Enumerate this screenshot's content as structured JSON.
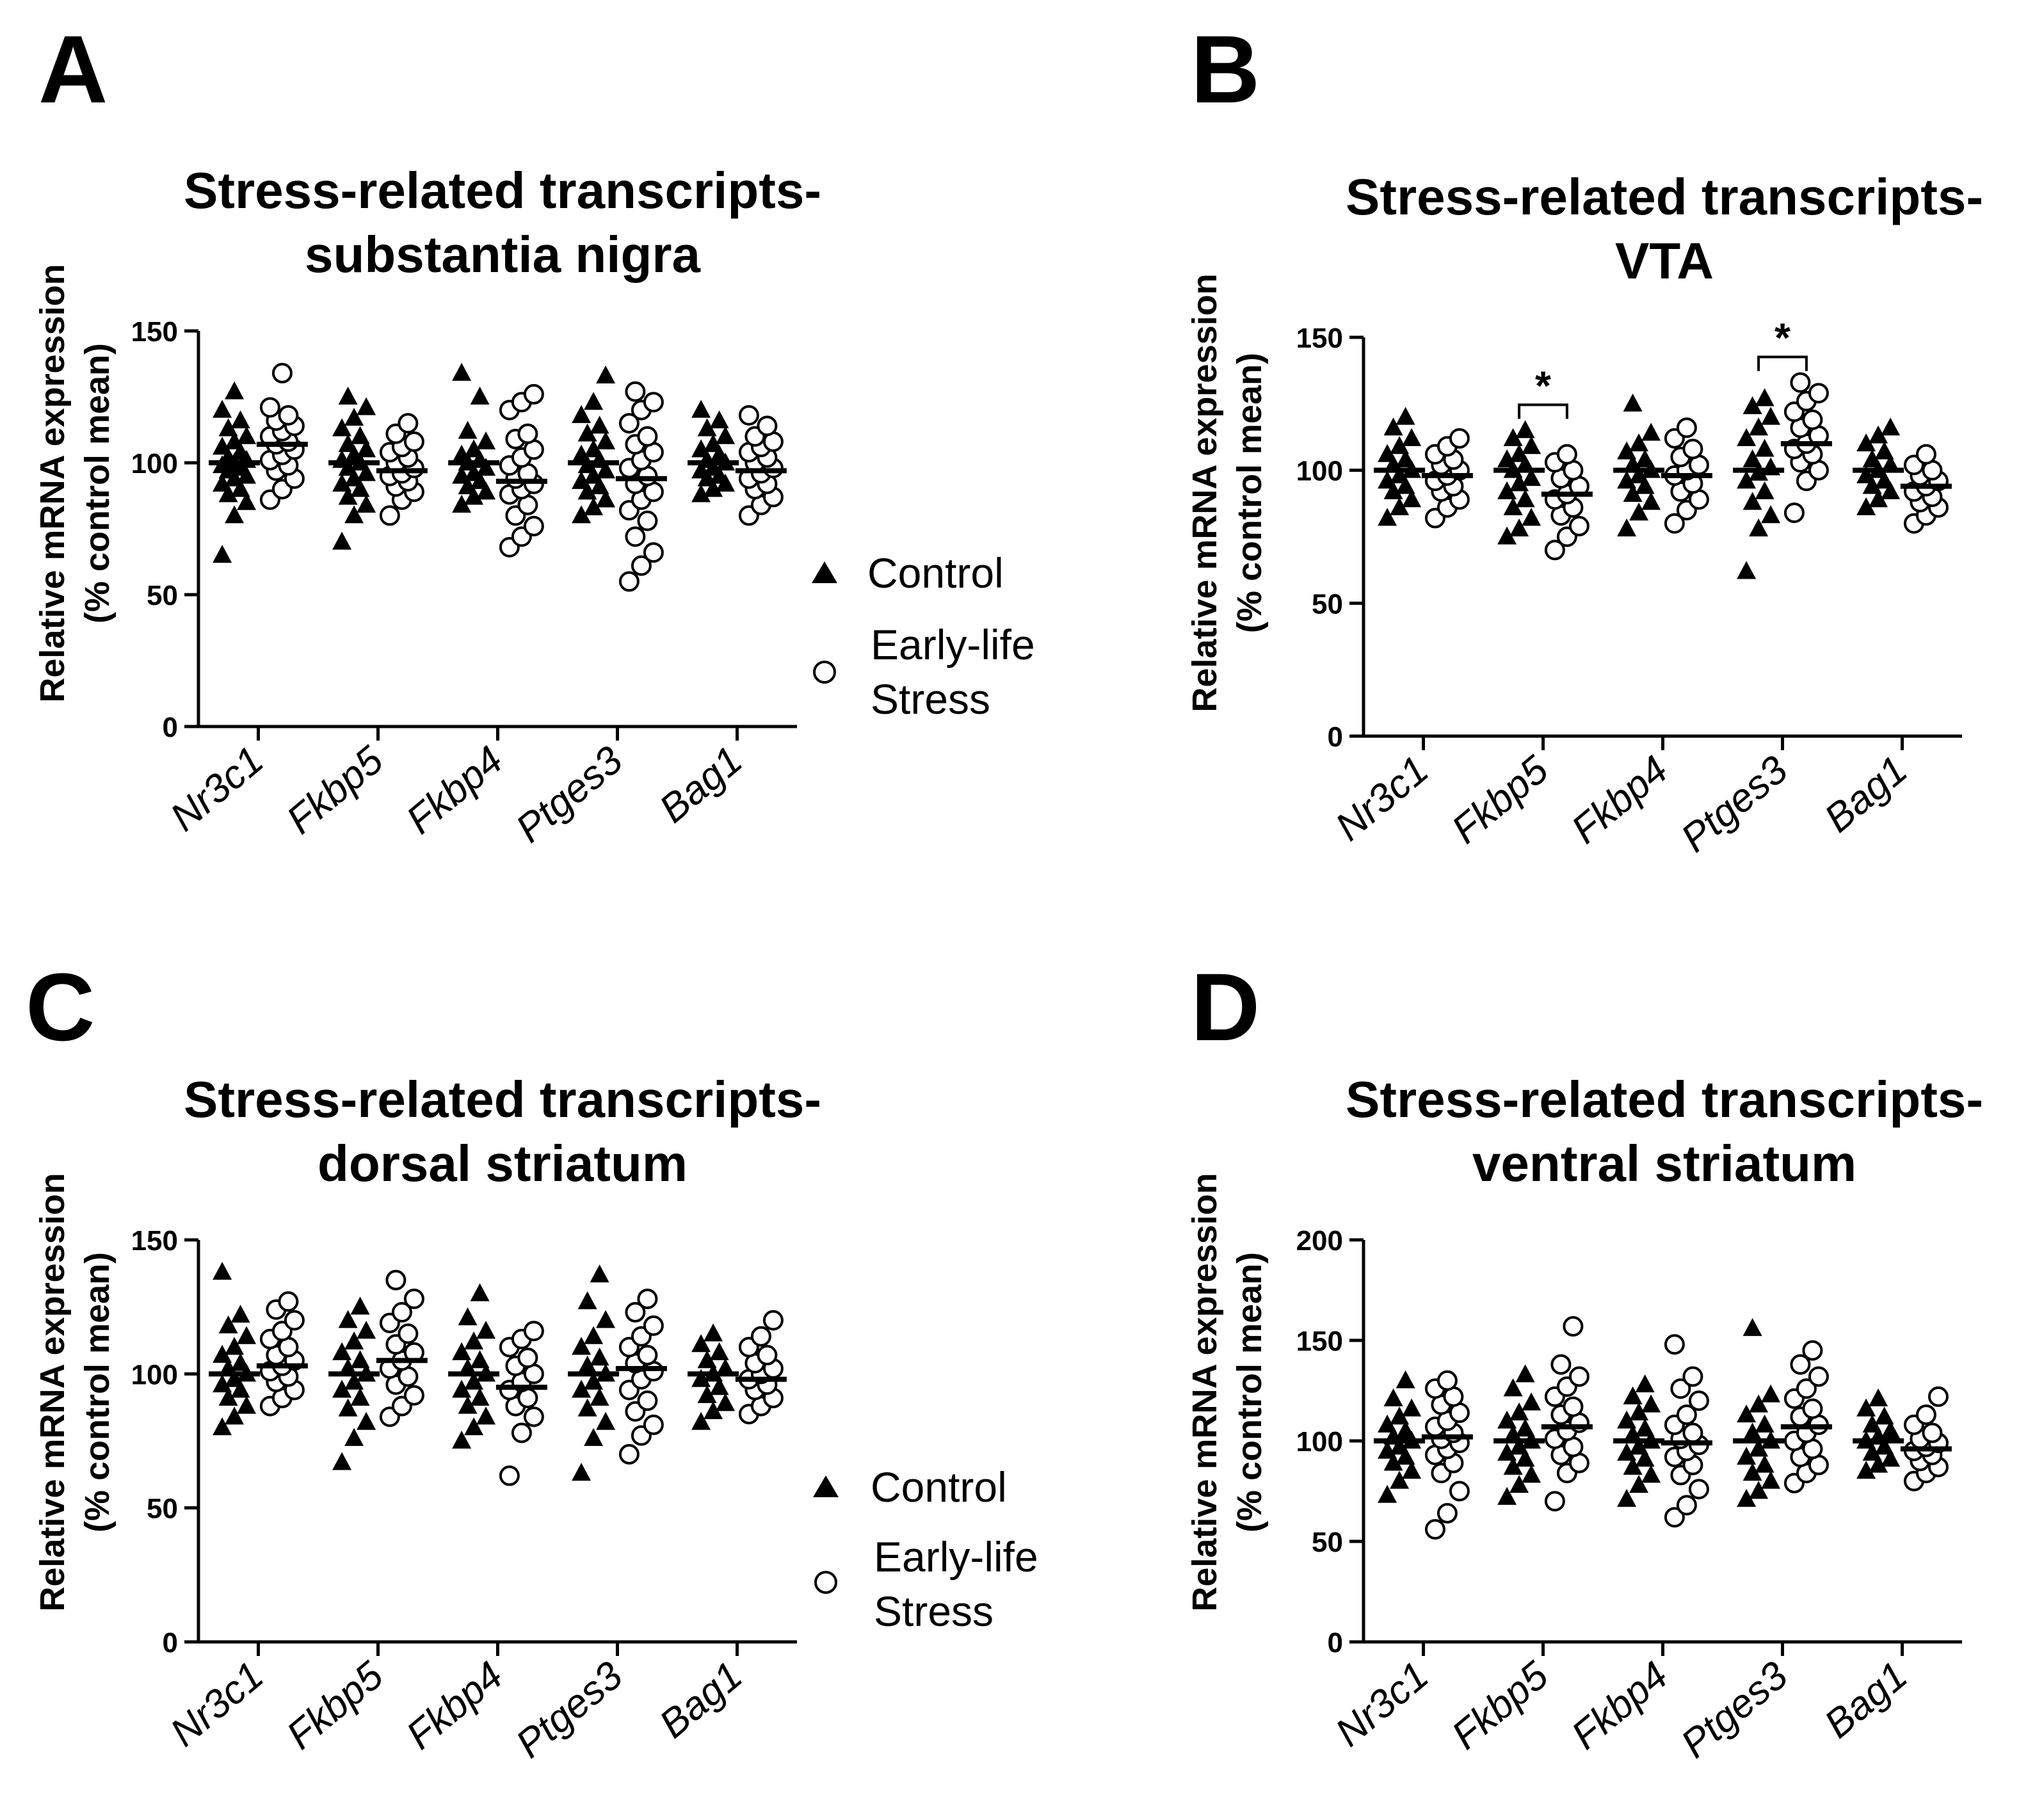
{
  "figure": {
    "x_categories": [
      "Nr3c1",
      "Fkbp5",
      "Fkbp4",
      "Ptges3",
      "Bag1"
    ],
    "ylabel_line1": "Relative mRNA expression",
    "ylabel_line2": "(% control mean)",
    "series_colors": {
      "Control": "#000000",
      "Early-life Stress": "#ffffff"
    }
  },
  "chart_data": [
    {
      "panel": "A",
      "type": "scatter",
      "title_line1": "Stress-related transcripts-",
      "title_line2": "substantia nigra",
      "ylim": [
        0,
        150
      ],
      "yticks": [
        0,
        50,
        100,
        150
      ],
      "legend": {
        "control": "Control",
        "els_line1": "Early-life",
        "els_line2": "Stress",
        "position": "right"
      },
      "significance": [],
      "series": [
        {
          "name": "Control",
          "marker": "triangle-filled",
          "means": [
            100,
            100,
            100,
            100,
            100
          ],
          "points": [
            [
              65,
              80,
              85,
              88,
              90,
              92,
              94,
              95,
              97,
              98,
              99,
              100,
              101,
              102,
              104,
              106,
              108,
              110,
              113,
              116,
              120,
              127
            ],
            [
              70,
              80,
              84,
              87,
              90,
              92,
              94,
              96,
              98,
              100,
              101,
              103,
              105,
              107,
              110,
              113,
              117,
              121,
              125
            ],
            [
              84,
              87,
              89,
              91,
              93,
              95,
              96,
              98,
              100,
              101,
              103,
              105,
              108,
              112,
              125,
              134
            ],
            [
              80,
              83,
              86,
              89,
              91,
              93,
              95,
              97,
              99,
              101,
              103,
              105,
              108,
              111,
              114,
              118,
              123,
              133
            ],
            [
              88,
              90,
              92,
              94,
              95,
              97,
              98,
              100,
              101,
              103,
              105,
              107,
              110,
              113,
              116,
              120
            ]
          ]
        },
        {
          "name": "Early-life Stress",
          "marker": "circle-open",
          "means": [
            107,
            97,
            93,
            94,
            97
          ],
          "points": [
            [
              86,
              90,
              94,
              97,
              99,
              101,
              103,
              105,
              107,
              108,
              110,
              112,
              114,
              116,
              118,
              121,
              134
            ],
            [
              80,
              86,
              89,
              91,
              93,
              95,
              96,
              98,
              100,
              102,
              104,
              106,
              108,
              111,
              115
            ],
            [
              68,
              72,
              76,
              80,
              84,
              88,
              90,
              92,
              94,
              96,
              99,
              102,
              105,
              109,
              111,
              120,
              123,
              126
            ],
            [
              55,
              61,
              66,
              72,
              78,
              82,
              86,
              89,
              92,
              95,
              98,
              101,
              104,
              107,
              110,
              115,
              120,
              123,
              127
            ],
            [
              80,
              84,
              87,
              90,
              92,
              94,
              96,
              98,
              100,
              102,
              104,
              106,
              108,
              110,
              114,
              118
            ]
          ]
        }
      ]
    },
    {
      "panel": "B",
      "type": "scatter",
      "title_line1": "Stress-related transcripts-",
      "title_line2": "VTA",
      "ylim": [
        0,
        150
      ],
      "yticks": [
        0,
        50,
        100,
        150
      ],
      "legend": null,
      "significance": [
        {
          "category": "Fkbp5",
          "label": "*"
        },
        {
          "category": "Ptges3",
          "label": "*"
        }
      ],
      "series": [
        {
          "name": "Control",
          "marker": "triangle-filled",
          "means": [
            100,
            100,
            100,
            100,
            100
          ],
          "points": [
            [
              82,
              86,
              89,
              92,
              94,
              96,
              98,
              100,
              102,
              104,
              106,
              109,
              112,
              116,
              120
            ],
            [
              75,
              78,
              82,
              86,
              89,
              92,
              95,
              97,
              100,
              102,
              104,
              106,
              109,
              112,
              115
            ],
            [
              78,
              84,
              88,
              91,
              94,
              96,
              98,
              100,
              102,
              104,
              107,
              110,
              114,
              125
            ],
            [
              62,
              78,
              83,
              88,
              92,
              96,
              99,
              101,
              104,
              108,
              112,
              116,
              120,
              124,
              127
            ],
            [
              86,
              89,
              92,
              94,
              96,
              98,
              100,
              102,
              104,
              107,
              110,
              113,
              116
            ]
          ]
        },
        {
          "name": "Early-life Stress",
          "marker": "circle-open",
          "means": [
            98,
            91,
            98,
            110,
            94
          ],
          "points": [
            [
              82,
              86,
              89,
              92,
              94,
              96,
              98,
              100,
              102,
              104,
              106,
              109,
              112
            ],
            [
              70,
              75,
              79,
              83,
              86,
              89,
              91,
              94,
              97,
              100,
              103,
              106
            ],
            [
              80,
              85,
              89,
              92,
              95,
              98,
              100,
              102,
              105,
              108,
              112,
              116
            ],
            [
              84,
              96,
              100,
              103,
              106,
              108,
              110,
              113,
              116,
              119,
              122,
              126,
              129,
              133
            ],
            [
              80,
              83,
              86,
              88,
              90,
              92,
              94,
              96,
              98,
              100,
              102,
              106
            ]
          ]
        }
      ]
    },
    {
      "panel": "C",
      "type": "scatter",
      "title_line1": "Stress-related transcripts-",
      "title_line2": "dorsal striatum",
      "ylim": [
        0,
        150
      ],
      "yticks": [
        0,
        50,
        100,
        150
      ],
      "legend": {
        "control": "Control",
        "els_line1": "Early-life",
        "els_line2": "Stress",
        "position": "right"
      },
      "significance": [],
      "series": [
        {
          "name": "Control",
          "marker": "triangle-filled",
          "means": [
            100,
            100,
            100,
            100,
            100
          ],
          "points": [
            [
              80,
              84,
              88,
              91,
              94,
              96,
              98,
              100,
              102,
              104,
              107,
              110,
              114,
              118,
              122,
              138
            ],
            [
              67,
              76,
              82,
              87,
              91,
              94,
              97,
              100,
              102,
              105,
              108,
              112,
              116,
              120,
              125
            ],
            [
              75,
              80,
              84,
              88,
              91,
              94,
              97,
              100,
              102,
              105,
              108,
              112,
              116,
              121,
              130
            ],
            [
              63,
              76,
              82,
              87,
              91,
              94,
              97,
              100,
              103,
              106,
              110,
              114,
              120,
              127,
              137
            ],
            [
              82,
              86,
              89,
              92,
              95,
              98,
              100,
              102,
              105,
              108,
              111,
              115
            ]
          ]
        },
        {
          "name": "Early-life Stress",
          "marker": "circle-open",
          "means": [
            103,
            105,
            95,
            102,
            98
          ],
          "points": [
            [
              88,
              91,
              94,
              97,
              99,
              101,
              103,
              105,
              107,
              110,
              113,
              116,
              120,
              124,
              127
            ],
            [
              84,
              88,
              92,
              96,
              99,
              102,
              105,
              108,
              111,
              115,
              119,
              123,
              128,
              135
            ],
            [
              62,
              78,
              84,
              88,
              91,
              94,
              97,
              100,
              103,
              106,
              110,
              113,
              116
            ],
            [
              70,
              77,
              81,
              86,
              90,
              94,
              98,
              101,
              104,
              107,
              110,
              114,
              118,
              123,
              128
            ],
            [
              85,
              88,
              91,
              94,
              96,
              98,
              100,
              102,
              104,
              107,
              110,
              114,
              120
            ]
          ]
        }
      ]
    },
    {
      "panel": "D",
      "type": "scatter",
      "title_line1": "Stress-related transcripts-",
      "title_line2": "ventral striatum",
      "ylim": [
        0,
        200
      ],
      "yticks": [
        0,
        50,
        100,
        150,
        200
      ],
      "legend": null,
      "significance": [],
      "series": [
        {
          "name": "Control",
          "marker": "triangle-filled",
          "means": [
            100,
            100,
            100,
            100,
            100
          ],
          "points": [
            [
              73,
              80,
              85,
              89,
              92,
              95,
              97,
              100,
              102,
              105,
              108,
              112,
              116,
              121,
              130
            ],
            [
              72,
              78,
              83,
              87,
              91,
              94,
              97,
              100,
              103,
              106,
              110,
              114,
              119,
              126,
              133
            ],
            [
              71,
              78,
              83,
              87,
              91,
              94,
              97,
              100,
              103,
              106,
              110,
              114,
              118,
              122,
              128
            ],
            [
              71,
              75,
              80,
              84,
              88,
              92,
              96,
              100,
              104,
              108,
              113,
              118,
              123,
              156
            ],
            [
              85,
              88,
              91,
              94,
              97,
              100,
              102,
              105,
              108,
              112,
              116,
              121
            ]
          ]
        },
        {
          "name": "Early-life Stress",
          "marker": "circle-open",
          "means": [
            102,
            107,
            99,
            107,
            96
          ],
          "points": [
            [
              56,
              64,
              75,
              84,
              89,
              93,
              96,
              99,
              101,
              104,
              107,
              110,
              114,
              118,
              122,
              126,
              130
            ],
            [
              70,
              84,
              89,
              93,
              97,
              101,
              105,
              109,
              113,
              117,
              122,
              127,
              132,
              138,
              157
            ],
            [
              62,
              68,
              76,
              83,
              88,
              92,
              95,
              98,
              101,
              104,
              108,
              113,
              120,
              126,
              132,
              148
            ],
            [
              79,
              84,
              88,
              92,
              96,
              100,
              104,
              108,
              112,
              116,
              121,
              126,
              132,
              138,
              145
            ],
            [
              80,
              84,
              87,
              90,
              93,
              95,
              97,
              99,
              101,
              104,
              108,
              113,
              122
            ]
          ]
        }
      ]
    }
  ]
}
